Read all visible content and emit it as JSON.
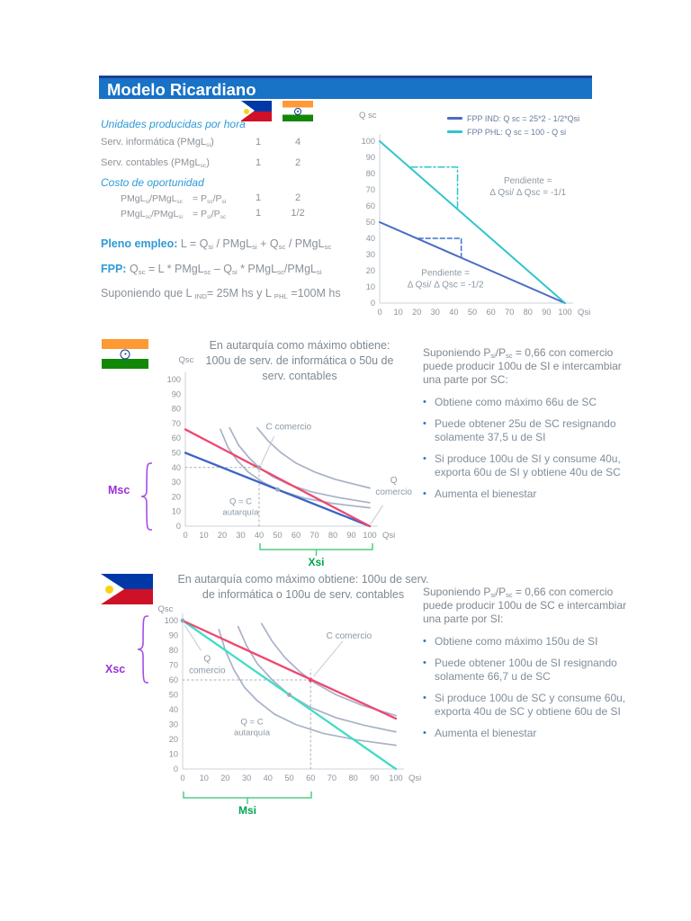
{
  "header": {
    "title": "Modelo Ricardiano"
  },
  "colors": {
    "header_blue": "#1872c6",
    "accent_blue": "#2f9ad6",
    "body_gray": "#8a9199",
    "pink_line": "#ef476f",
    "teal_line": "#31c5cc",
    "teal_bright": "#40ddc8",
    "blue_line": "#4a6cc6",
    "indiff_gray": "#a8b2c6",
    "purple": "#9b30d9",
    "green": "#00a550",
    "bullet_blue": "#2e75c6"
  },
  "flags": {
    "top_left": "philippines-flag",
    "top_right": "india-flag",
    "section1": "india-flag",
    "section2": "philippines-flag"
  },
  "table": {
    "heading1": "Unidades producidas por hora",
    "rows": [
      {
        "label": [
          [
            "t",
            "Serv. informática (PMgL"
          ],
          [
            "s",
            "si"
          ],
          [
            "t",
            ")"
          ]
        ],
        "ph": "1",
        "in": "4"
      },
      {
        "label": [
          [
            "t",
            "Serv. contables (PMgL"
          ],
          [
            "s",
            "sc"
          ],
          [
            "t",
            ")"
          ]
        ],
        "ph": "1",
        "in": "2"
      }
    ],
    "heading2": "Costo de oportunidad",
    "cost_rows": [
      {
        "label": [
          [
            "t",
            "PMgL"
          ],
          [
            "s",
            "si"
          ],
          [
            "t",
            "/PMgL"
          ],
          [
            "s",
            "sc"
          ]
        ],
        "eq": [
          [
            "t",
            "= P"
          ],
          [
            "s",
            "sc"
          ],
          [
            "t",
            "/P"
          ],
          [
            "s",
            "si"
          ]
        ],
        "ph": "1",
        "in": "2"
      },
      {
        "label": [
          [
            "t",
            "PMgL"
          ],
          [
            "s",
            "sc"
          ],
          [
            "t",
            "/PMgL"
          ],
          [
            "s",
            "si"
          ]
        ],
        "eq": [
          [
            "t",
            "= P"
          ],
          [
            "s",
            "si"
          ],
          [
            "t",
            "/P"
          ],
          [
            "s",
            "sc"
          ]
        ],
        "ph": "1",
        "in": "1/2"
      }
    ]
  },
  "formulas": {
    "pleno_lead": "Pleno empleo:",
    "pleno_rest": [
      [
        "t",
        " L = Q"
      ],
      [
        "s",
        "si"
      ],
      [
        "t",
        " / PMgL"
      ],
      [
        "s",
        "si"
      ],
      [
        "t",
        " + Q"
      ],
      [
        "s",
        "sc"
      ],
      [
        "t",
        " / PMgL"
      ],
      [
        "s",
        "sc"
      ]
    ],
    "fpp_lead": "FPP:",
    "fpp_rest": [
      [
        "t",
        " Q"
      ],
      [
        "s",
        "sc"
      ],
      [
        "t",
        " = L * PMgL"
      ],
      [
        "s",
        "sc"
      ],
      [
        "t",
        " – Q"
      ],
      [
        "s",
        "si"
      ],
      [
        "t",
        " * PMgL"
      ],
      [
        "s",
        "sc"
      ],
      [
        "t",
        "/PMgL"
      ],
      [
        "s",
        "si"
      ]
    ],
    "supuesto": [
      [
        "t",
        "Suponiendo que L "
      ],
      [
        "s",
        "IND"
      ],
      [
        "t",
        "= 25M hs y L "
      ],
      [
        "s",
        "PHL"
      ],
      [
        "t",
        " =100M hs"
      ]
    ]
  },
  "sections": {
    "india": {
      "title_lines": [
        "En autarquía como máximo obtiene:",
        "100u de serv. de informática o 50u de",
        "serv. contables"
      ],
      "intro": [
        [
          "t",
          "Suponiendo P"
        ],
        [
          "s",
          "si"
        ],
        [
          "t",
          "/P"
        ],
        [
          "s",
          "sc"
        ],
        [
          "t",
          " = 0,66 con comercio puede producir 100u de SI e intercambiar una parte por SC:"
        ]
      ],
      "bullets": [
        "Obtiene como máximo 66u de SC",
        "Puede obtener 25u de SC resignando solamente 37,5 u de SI",
        "Si produce 100u de SI y consume 40u, exporta 60u de SI y obtiene 40u de SC",
        "Aumenta el bienestar"
      ],
      "import_label": "Msc",
      "export_label": "Xsi"
    },
    "phl": {
      "title_lines": [
        "En autarquía como máximo obtiene: 100u de serv.",
        "de informática o 100u de serv. contables"
      ],
      "intro": [
        [
          "t",
          "Suponiendo P"
        ],
        [
          "s",
          "si"
        ],
        [
          "t",
          "/P"
        ],
        [
          "s",
          "sc"
        ],
        [
          "t",
          " = 0,66 con comercio puede producir 100u de SC e intercambiar una parte por SI:"
        ]
      ],
      "bullets": [
        "Obtiene como máximo 150u de SI",
        "Puede obtener 100u de SI resignando solamente 66,7 u de SC",
        "Si produce 100u de SC y consume 60u, exporta 40u de SC y obtiene 60u de SI",
        "Aumenta el bienestar"
      ],
      "export_label": "Xsc",
      "import_label": "Msi"
    }
  },
  "chart_data": [
    {
      "id": "fpp",
      "type": "line",
      "x_label": "Qsi",
      "y_label": "Q sc",
      "x_range": [
        0,
        100
      ],
      "y_range": [
        0,
        100
      ],
      "x_ticks": [
        0,
        10,
        20,
        30,
        40,
        50,
        60,
        70,
        80,
        90,
        100
      ],
      "y_ticks": [
        0,
        10,
        20,
        30,
        40,
        50,
        60,
        70,
        80,
        90,
        100
      ],
      "legend": [
        {
          "label": "FPP IND: Q sc = 25*2 - 1/2*Qsi",
          "color": "#4a6cc6"
        },
        {
          "label": "FPP PHL: Q sc = 100 - Q si",
          "color": "#31c5cc"
        }
      ],
      "series": [
        {
          "name": "fpp-ind",
          "color": "#4a6cc6",
          "w": 2,
          "points": [
            [
              0,
              50
            ],
            [
              100,
              0
            ]
          ]
        },
        {
          "name": "fpp-phl",
          "color": "#31c5cc",
          "w": 2,
          "points": [
            [
              0,
              100
            ],
            [
              100,
              0
            ]
          ]
        },
        {
          "name": "slope-triangle-phl",
          "color": "#31c5cc",
          "w": 1.5,
          "dash": "7 3 2 3",
          "points": [
            [
              17,
              84
            ],
            [
              42,
              84
            ],
            [
              42,
              59
            ]
          ]
        },
        {
          "name": "slope-triangle-ind",
          "color": "#3f72cc",
          "w": 1.5,
          "dash": "5 3",
          "points": [
            [
              21,
              40
            ],
            [
              44,
              40
            ],
            [
              44,
              27.5
            ]
          ]
        }
      ],
      "annotations": [
        {
          "x": 80,
          "y": 74,
          "lines": [
            "Pendiente =",
            "Δ Qsi/ Δ Qsc = -1/1"
          ],
          "size": 10,
          "lh": 13
        },
        {
          "x": 35.5,
          "y": 17,
          "lines": [
            "Pendiente =",
            "Δ Qsi/ Δ Qsc = -1/2"
          ],
          "size": 10,
          "lh": 13
        }
      ],
      "markers": []
    },
    {
      "id": "india-autarky",
      "type": "line",
      "x_label": "Qsi",
      "y_label": "Qsc",
      "x_range": [
        0,
        100
      ],
      "y_range": [
        0,
        100
      ],
      "x_ticks": [
        0,
        10,
        20,
        30,
        40,
        50,
        60,
        70,
        80,
        90,
        100
      ],
      "y_ticks": [
        0,
        10,
        20,
        30,
        40,
        50,
        60,
        70,
        80,
        90,
        100
      ],
      "series": [
        {
          "name": "indiff-1",
          "color": "#a8b2c6",
          "w": 1.7,
          "points": [
            [
              19,
              66
            ],
            [
              23,
              54
            ],
            [
              28,
              45
            ],
            [
              34,
              37
            ],
            [
              42,
              30
            ],
            [
              52,
              24
            ],
            [
              65,
              19
            ],
            [
              80,
              15.5
            ],
            [
              100,
              12.5
            ]
          ]
        },
        {
          "name": "indiff-2",
          "color": "#a8b2c6",
          "w": 1.7,
          "points": [
            [
              24,
              67
            ],
            [
              29,
              55
            ],
            [
              35,
              46
            ],
            [
              40,
              40
            ],
            [
              47,
              34
            ],
            [
              56,
              28.5
            ],
            [
              68,
              23.5
            ],
            [
              83,
              19.5
            ],
            [
              100,
              16
            ]
          ]
        },
        {
          "name": "indiff-3",
          "color": "#a8b2c6",
          "w": 1.7,
          "points": [
            [
              39,
              67
            ],
            [
              45,
              58
            ],
            [
              52,
              50
            ],
            [
              60,
              43
            ],
            [
              70,
              37
            ],
            [
              81,
              32
            ],
            [
              100,
              26
            ]
          ]
        },
        {
          "name": "guide-h40",
          "color": "#a7acb4",
          "w": 1,
          "dash": "2 3",
          "points": [
            [
              0,
              40
            ],
            [
              40,
              40
            ]
          ]
        },
        {
          "name": "guide-v40",
          "color": "#a7acb4",
          "w": 1,
          "dash": "2 3",
          "points": [
            [
              40,
              0
            ],
            [
              40,
              40
            ]
          ]
        },
        {
          "name": "fpp-ind",
          "color": "#3c63c6",
          "w": 2.3,
          "points": [
            [
              0,
              50
            ],
            [
              100,
              0
            ]
          ]
        },
        {
          "name": "trade-line",
          "color": "#ef476f",
          "w": 2.3,
          "points": [
            [
              0,
              66
            ],
            [
              100,
              0
            ]
          ]
        },
        {
          "name": "leader-c",
          "color": "#bcc3cf",
          "w": 0.9,
          "points": [
            [
              48,
              61
            ],
            [
              41,
              42
            ]
          ]
        },
        {
          "name": "leader-q",
          "color": "#bcc3cf",
          "w": 0.9,
          "points": [
            [
              107,
              14
            ],
            [
              100.5,
              1.5
            ]
          ]
        }
      ],
      "annotations": [
        {
          "x": 56,
          "y": 66,
          "lines": [
            "C comercio"
          ],
          "size": 10
        },
        {
          "x": 113,
          "y": 29.5,
          "lines": [
            "Q",
            "comercio"
          ],
          "size": 10,
          "lh": 13
        },
        {
          "x": 30,
          "y": 15,
          "lines": [
            "Q = C",
            "autarquía"
          ],
          "size": 9.5,
          "lh": 12
        }
      ],
      "markers": [
        {
          "x": 40,
          "y": 40,
          "color": "#9aa5b8"
        },
        {
          "x": 50,
          "y": 25,
          "color": "#9aa5b8"
        }
      ]
    },
    {
      "id": "phl-autarky",
      "type": "line",
      "x_label": "Qsi",
      "y_label": "Qsc",
      "x_range": [
        0,
        100
      ],
      "y_range": [
        0,
        100
      ],
      "x_ticks": [
        0,
        10,
        20,
        30,
        40,
        50,
        60,
        70,
        80,
        90,
        100
      ],
      "y_ticks": [
        0,
        10,
        20,
        30,
        40,
        50,
        60,
        70,
        80,
        90,
        100
      ],
      "series": [
        {
          "name": "indiff-1",
          "color": "#a8b2c6",
          "w": 1.7,
          "points": [
            [
              17,
              94
            ],
            [
              20,
              80
            ],
            [
              24,
              67
            ],
            [
              29,
              55
            ],
            [
              35,
              46
            ],
            [
              43,
              37
            ],
            [
              53,
              30
            ],
            [
              66,
              24
            ],
            [
              82,
              19.5
            ],
            [
              100,
              16
            ]
          ]
        },
        {
          "name": "indiff-2",
          "color": "#a8b2c6",
          "w": 1.7,
          "points": [
            [
              26,
              96
            ],
            [
              30,
              83
            ],
            [
              35,
              71
            ],
            [
              42,
              60
            ],
            [
              50,
              50
            ],
            [
              60,
              41.5
            ],
            [
              72,
              34.5
            ],
            [
              85,
              29.5
            ],
            [
              100,
              25
            ]
          ]
        },
        {
          "name": "indiff-3",
          "color": "#a8b2c6",
          "w": 1.7,
          "points": [
            [
              37,
              98
            ],
            [
              42,
              86
            ],
            [
              48,
              75
            ],
            [
              55,
              65.5
            ],
            [
              62,
              58
            ],
            [
              72,
              50
            ],
            [
              84,
              43
            ],
            [
              100,
              36
            ]
          ]
        },
        {
          "name": "guide-h60",
          "color": "#a7acb4",
          "w": 1,
          "dash": "2 3",
          "points": [
            [
              0,
              60
            ],
            [
              60,
              60
            ]
          ]
        },
        {
          "name": "guide-v60",
          "color": "#a7acb4",
          "w": 1,
          "dash": "2 3",
          "points": [
            [
              60,
              0
            ],
            [
              60,
              67
            ]
          ]
        },
        {
          "name": "fpp-phl",
          "color": "#40ddc8",
          "w": 2.3,
          "points": [
            [
              0,
              100
            ],
            [
              100,
              0
            ]
          ]
        },
        {
          "name": "trade-line",
          "color": "#ef476f",
          "w": 2.3,
          "points": [
            [
              0,
              100
            ],
            [
              100,
              34
            ]
          ]
        },
        {
          "name": "leader-q",
          "color": "#bcc3cf",
          "w": 0.9,
          "points": [
            [
              1,
              97
            ],
            [
              8.5,
              80
            ]
          ]
        },
        {
          "name": "leader-c",
          "color": "#bcc3cf",
          "w": 0.9,
          "points": [
            [
              75,
              86
            ],
            [
              61.5,
              62.5
            ]
          ]
        }
      ],
      "annotations": [
        {
          "x": 11.5,
          "y": 72.5,
          "lines": [
            "Q",
            "comercio"
          ],
          "size": 10,
          "lh": 13
        },
        {
          "x": 78,
          "y": 88,
          "lines": [
            "C comercio"
          ],
          "size": 10
        },
        {
          "x": 32.5,
          "y": 30,
          "lines": [
            "Q = C",
            "autarquía"
          ],
          "size": 9.5,
          "lh": 12
        }
      ],
      "markers": [
        {
          "x": 50,
          "y": 50,
          "color": "#9aa5b8"
        },
        {
          "x": 60,
          "y": 60,
          "color": "#ef476f"
        },
        {
          "x": 0,
          "y": 100,
          "color": "#9aa5b8"
        }
      ]
    }
  ]
}
